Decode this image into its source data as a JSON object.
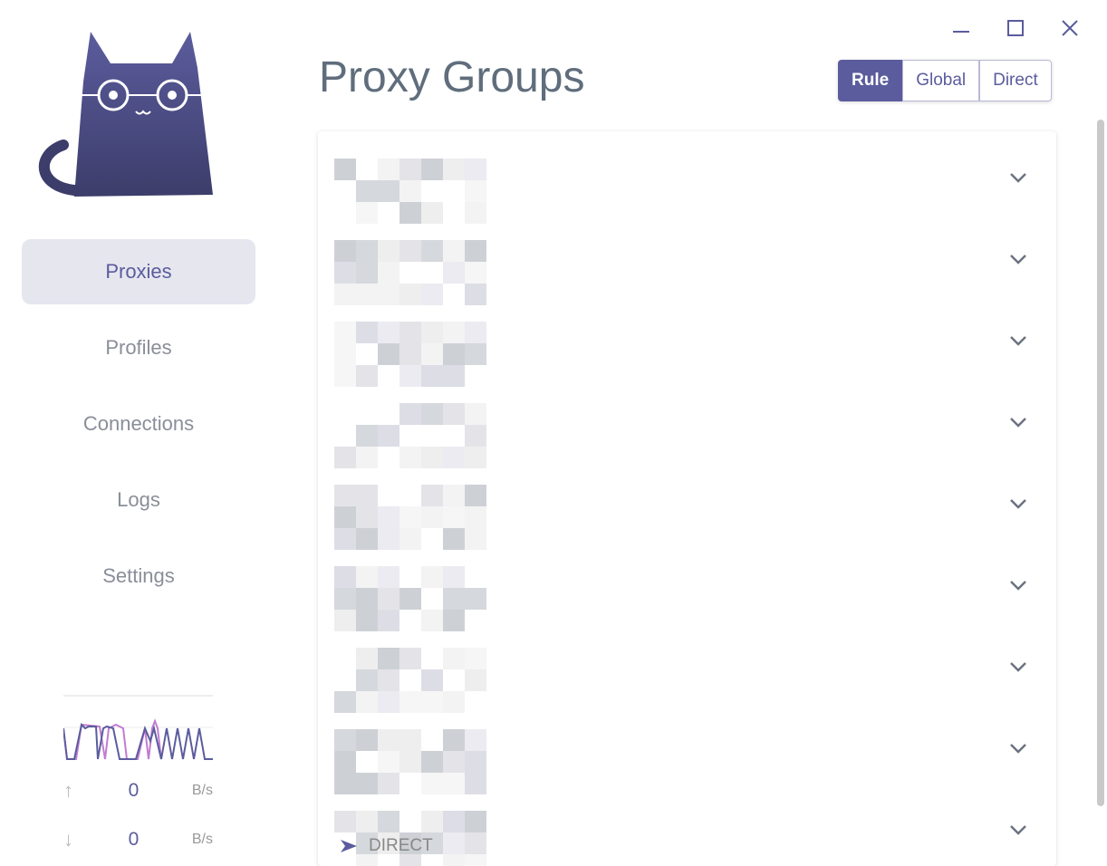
{
  "window": {
    "minimize": "minimize",
    "maximize": "maximize",
    "close": "close"
  },
  "sidebar": {
    "items": [
      {
        "label": "Proxies",
        "active": true
      },
      {
        "label": "Profiles"
      },
      {
        "label": "Connections"
      },
      {
        "label": "Logs"
      },
      {
        "label": "Settings"
      }
    ]
  },
  "traffic": {
    "upload": {
      "value": "0",
      "unit": "B/s"
    },
    "download": {
      "value": "0",
      "unit": "B/s"
    }
  },
  "header": {
    "title": "Proxy Groups",
    "modes": [
      {
        "label": "Rule",
        "active": true
      },
      {
        "label": "Global"
      },
      {
        "label": "Direct"
      }
    ]
  },
  "groups": {
    "count_visible": 9,
    "last_selected": "DIRECT"
  },
  "colors": {
    "accent": "#5b5c9d",
    "upload_line": "#5b5c9d",
    "download_line": "#c17cd1"
  }
}
